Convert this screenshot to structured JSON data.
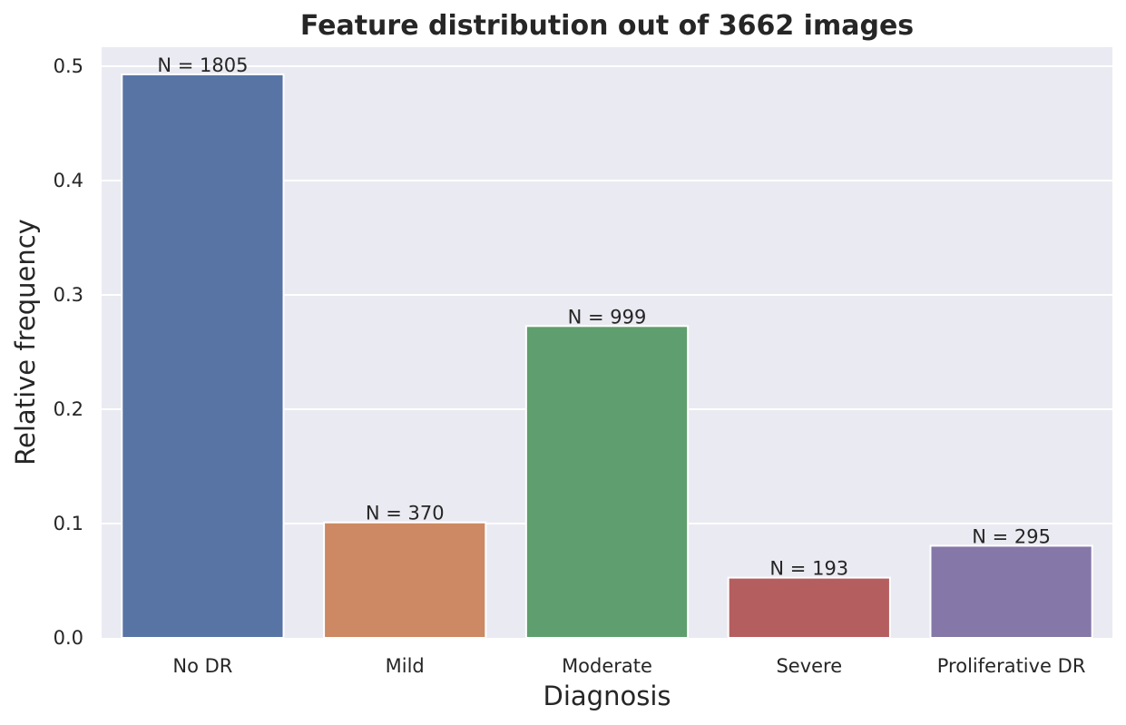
{
  "chart_data": {
    "type": "bar",
    "title": "Feature distribution out of 3662 images",
    "xlabel": "Diagnosis",
    "ylabel": "Relative frequency",
    "categories": [
      "No DR",
      "Mild",
      "Moderate",
      "Severe",
      "Proliferative DR"
    ],
    "values": [
      0.4929,
      0.101,
      0.2728,
      0.0527,
      0.0806
    ],
    "data_labels": [
      "N = 1805",
      "N = 370",
      "N = 999",
      "N = 193",
      "N = 295"
    ],
    "colors": [
      "#5874a4",
      "#cc8963",
      "#5f9e6e",
      "#b55e60",
      "#8578a9"
    ],
    "ylim": [
      0,
      0.5167
    ],
    "yticks": [
      0.0,
      0.1,
      0.2,
      0.3,
      0.4,
      0.5
    ],
    "ytick_labels": [
      "0.0",
      "0.1",
      "0.2",
      "0.3",
      "0.4",
      "0.5"
    ],
    "grid": true,
    "background": "#eaeaf2"
  }
}
